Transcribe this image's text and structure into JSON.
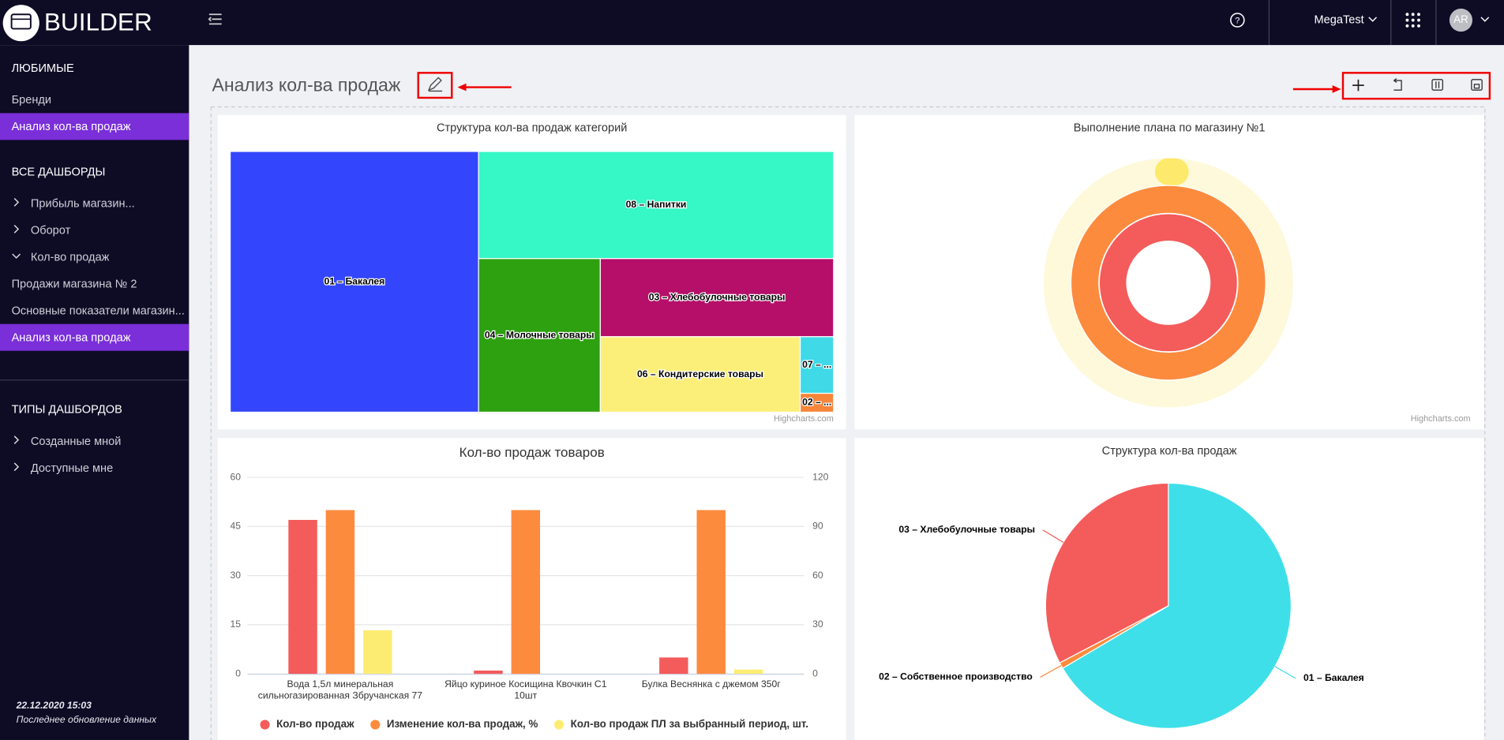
{
  "header": {
    "logo": "BUILDER",
    "user": "MegaTest",
    "avatar": "AR"
  },
  "sidebar": {
    "sections": [
      {
        "title": "ЛЮБИМЫЕ",
        "items": [
          {
            "label": "Бренди"
          },
          {
            "label": "Анализ кол-ва продаж",
            "active": true
          }
        ]
      },
      {
        "title": "ВСЕ ДАШБОРДЫ",
        "items": [
          {
            "label": "Прибыль магазин...",
            "toggle": "closed"
          },
          {
            "label": "Оборот",
            "toggle": "closed"
          },
          {
            "label": "Кол-во продаж",
            "toggle": "open"
          },
          {
            "label": "Продажи магазина № 2"
          },
          {
            "label": "Основные показатели магазин..."
          },
          {
            "label": "Анализ кол-ва продаж",
            "active": true
          }
        ]
      },
      {
        "title": "ТИПЫ ДАШБОРДОВ",
        "items": [
          {
            "label": "Созданные мной",
            "toggle": "closed"
          },
          {
            "label": "Доступные мне",
            "toggle": "closed"
          }
        ]
      }
    ],
    "updated": "22.12.2020 15:03",
    "updated_label": "Последнее обновление данных"
  },
  "page": {
    "title": "Анализ кол-ва продаж"
  },
  "chart_data": [
    {
      "type": "treemap",
      "title": "Структура кол-ва продаж категорий",
      "categories": [
        "01 – Бакалея",
        "08 – Напитки",
        "04 – Молочные товары",
        "03 – Хлебобулочные товары",
        "06 – Кондитерские товары",
        "07 – ...",
        "02 – ..."
      ],
      "values": [
        41.2,
        24.2,
        11.9,
        11.6,
        9.6,
        1.2,
        0.4
      ],
      "colors": [
        "#3346fd",
        "#36f7c6",
        "#2da10f",
        "#b50f69",
        "#fcef79",
        "#3fd9e8",
        "#f7853a"
      ],
      "credits": "Highcharts.com"
    },
    {
      "type": "gauge",
      "title": "Выполнение плана по магазину №1",
      "ylim": [
        0,
        100
      ],
      "series": [
        {
          "color": "#fde96b",
          "values": [
            1
          ]
        },
        {
          "color": "#fd8b3e",
          "values": [
            100
          ]
        },
        {
          "color": "#f45b5b",
          "values": [
            100
          ]
        }
      ],
      "credits": "Highcharts.com"
    },
    {
      "type": "bar",
      "title": "Кол-во продаж товаров",
      "categories": [
        "Вода 1,5л минеральная сильногазированная Збручанская 77",
        "Яйцо куриное Косищина Квочкин С1 10шт",
        "Булка Веснянка с джемом 350г"
      ],
      "series": [
        {
          "name": "Кол-во продаж",
          "color": "#f45b5b",
          "values": [
            47,
            1,
            5
          ]
        },
        {
          "name": "Изменение кол-ва продаж, %",
          "color": "#fd8b3e",
          "axis": "y2",
          "values": [
            100,
            100,
            100
          ]
        },
        {
          "name": "Кол-во продаж ПЛ за выбранный период, шт.",
          "color": "#fced72",
          "values": [
            13.3,
            0,
            1.3
          ]
        }
      ],
      "ylim": [
        0,
        60
      ],
      "yticks": [
        0,
        15,
        30,
        45,
        60
      ],
      "y2lim": [
        0,
        120
      ],
      "y2ticks": [
        0,
        30,
        60,
        90,
        120
      ],
      "grid": true
    },
    {
      "type": "pie",
      "title": "Структура кол-ва продаж",
      "categories": [
        "01 – Бакалея",
        "02 – Собственное производство",
        "03 – Хлебобулочные товары"
      ],
      "values": [
        66.5,
        0.8,
        32.7
      ],
      "colors": [
        "#3fdfe9",
        "#fd8b3e",
        "#f45b5b"
      ]
    }
  ]
}
